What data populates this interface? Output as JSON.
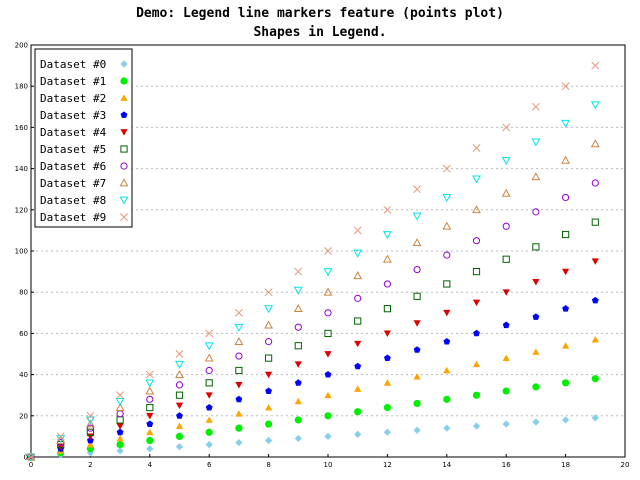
{
  "chart_data": {
    "type": "scatter",
    "title": "Demo: Legend line markers feature (points plot)",
    "subtitle": "Shapes in Legend.",
    "xlabel": "",
    "ylabel": "",
    "xlim": [
      0,
      20
    ],
    "ylim": [
      0,
      200
    ],
    "x_ticks": [
      0,
      2,
      4,
      6,
      8,
      10,
      12,
      14,
      16,
      18,
      20
    ],
    "y_ticks": [
      0,
      20,
      40,
      60,
      80,
      100,
      120,
      140,
      160,
      180,
      200
    ],
    "grid": "horizontal-dashed",
    "legend_position": "top-left",
    "x": [
      0,
      1,
      2,
      3,
      4,
      5,
      6,
      7,
      8,
      9,
      10,
      11,
      12,
      13,
      14,
      15,
      16,
      17,
      18,
      19
    ],
    "series": [
      {
        "name": "Dataset #0",
        "marker": "diamond",
        "color": "#87ceeb",
        "values": [
          0,
          1,
          2,
          3,
          4,
          5,
          6,
          7,
          8,
          9,
          10,
          11,
          12,
          13,
          14,
          15,
          16,
          17,
          18,
          19
        ]
      },
      {
        "name": "Dataset #1",
        "marker": "circle",
        "color": "#00ee00",
        "values": [
          0,
          2,
          4,
          6,
          8,
          10,
          12,
          14,
          16,
          18,
          20,
          22,
          24,
          26,
          28,
          30,
          32,
          34,
          36,
          38
        ]
      },
      {
        "name": "Dataset #2",
        "marker": "triangle-up",
        "color": "#ffa500",
        "values": [
          0,
          3,
          6,
          9,
          12,
          15,
          18,
          21,
          24,
          27,
          30,
          33,
          36,
          39,
          42,
          45,
          48,
          51,
          54,
          57
        ]
      },
      {
        "name": "Dataset #3",
        "marker": "pentagon",
        "color": "#0000ff",
        "values": [
          0,
          4,
          8,
          12,
          16,
          20,
          24,
          28,
          32,
          36,
          40,
          44,
          48,
          52,
          56,
          60,
          64,
          68,
          72,
          76
        ]
      },
      {
        "name": "Dataset #4",
        "marker": "triangle-down",
        "color": "#dd0000",
        "values": [
          0,
          5,
          10,
          15,
          20,
          25,
          30,
          35,
          40,
          45,
          50,
          55,
          60,
          65,
          70,
          75,
          80,
          85,
          90,
          95
        ]
      },
      {
        "name": "Dataset #5",
        "marker": "square-open",
        "color": "#006400",
        "values": [
          0,
          6,
          12,
          18,
          24,
          30,
          36,
          42,
          48,
          54,
          60,
          66,
          72,
          78,
          84,
          90,
          96,
          102,
          108,
          114
        ]
      },
      {
        "name": "Dataset #6",
        "marker": "circle-open",
        "color": "#9400d3",
        "values": [
          0,
          7,
          14,
          21,
          28,
          35,
          42,
          49,
          56,
          63,
          70,
          77,
          84,
          91,
          98,
          105,
          112,
          119,
          126,
          133
        ]
      },
      {
        "name": "Dataset #7",
        "marker": "triangle-up-open",
        "color": "#cd853f",
        "values": [
          0,
          8,
          16,
          24,
          32,
          40,
          48,
          56,
          64,
          72,
          80,
          88,
          96,
          104,
          112,
          120,
          128,
          136,
          144,
          152
        ]
      },
      {
        "name": "Dataset #8",
        "marker": "triangle-down-open",
        "color": "#00e5ee",
        "values": [
          0,
          9,
          18,
          27,
          36,
          45,
          54,
          63,
          72,
          81,
          90,
          99,
          108,
          117,
          126,
          135,
          144,
          153,
          162,
          171
        ]
      },
      {
        "name": "Dataset #9",
        "marker": "x-cross",
        "color": "#e9967a",
        "values": [
          0,
          10,
          20,
          30,
          40,
          50,
          60,
          70,
          80,
          90,
          100,
          110,
          120,
          130,
          140,
          150,
          160,
          170,
          180,
          190
        ]
      }
    ]
  }
}
